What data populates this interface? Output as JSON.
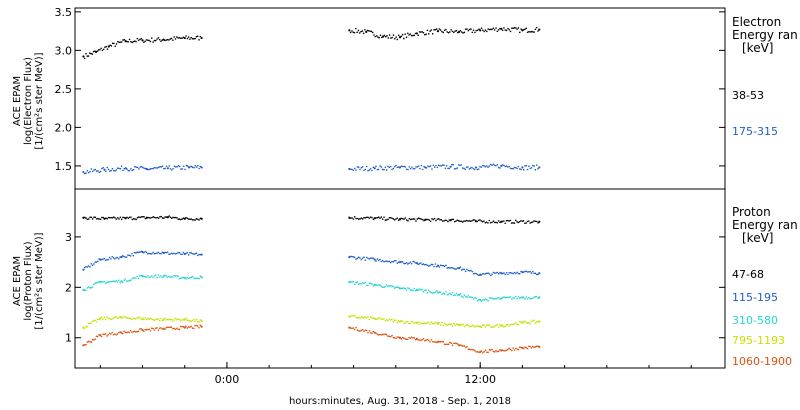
{
  "xaxis": {
    "label": "hours:minutes, Aug. 31, 2018 - Sep.  1, 2018",
    "ticks": [
      {
        "x": 0,
        "label": "0:00"
      },
      {
        "x": 12,
        "label": "12:00"
      }
    ],
    "range": [
      -7.2,
      23.6
    ]
  },
  "panels": {
    "electron": {
      "ylabel": [
        "ACE EPAM",
        "log(Electron Flux)",
        "[1/(cm²s ster MeV)]"
      ],
      "legend_title": [
        "Electron",
        "Energy ran",
        "[keV]"
      ],
      "channels": [
        {
          "label": "38-53",
          "color": "#000000"
        },
        {
          "label": "175-315",
          "color": "#1f5fc8"
        }
      ]
    },
    "proton": {
      "ylabel": [
        "ACE EPAM",
        "log(Proton Flux)",
        "[1/(cm²s ster MeV)]"
      ],
      "legend_title": [
        "Proton",
        "Energy ran",
        "[keV]"
      ],
      "channels": [
        {
          "label": "47-68",
          "color": "#000000"
        },
        {
          "label": "115-195",
          "color": "#1f5fc8"
        },
        {
          "label": "310-580",
          "color": "#22d4d4"
        },
        {
          "label": "795-1193",
          "color": "#c8e000"
        },
        {
          "label": "1060-1900",
          "color": "#e0520f"
        }
      ]
    }
  },
  "chart_data": [
    {
      "type": "scatter",
      "title": "",
      "xlabel": "hours:minutes, Aug. 31, 2018 - Sep.  1, 2018",
      "ylabel": "log(Electron Flux)",
      "xlim": [
        -7.2,
        23.6
      ],
      "ylim": [
        1.2,
        3.55
      ],
      "yticks": [
        1.5,
        2.0,
        2.5,
        3.0,
        3.5
      ],
      "series": [
        {
          "name": "38-53",
          "color": "#000000",
          "x": [
            -6.8,
            -6.2,
            -5.6,
            -4.8,
            -4.0,
            -3.0,
            -2.0,
            -1.2,
            5.8,
            6.6,
            7.4,
            8.2,
            9.0,
            10.0,
            11.0,
            12.0,
            13.0,
            14.0,
            14.8
          ],
          "y": [
            2.92,
            2.98,
            3.05,
            3.12,
            3.13,
            3.14,
            3.16,
            3.16,
            3.26,
            3.24,
            3.18,
            3.17,
            3.22,
            3.25,
            3.24,
            3.26,
            3.28,
            3.26,
            3.27
          ]
        },
        {
          "name": "175-315",
          "color": "#1f5fc8",
          "x": [
            -6.8,
            -5.8,
            -4.8,
            -3.8,
            -2.8,
            -1.8,
            -1.2,
            5.8,
            7.0,
            8.2,
            9.4,
            10.6,
            11.8,
            13.0,
            14.0,
            14.8
          ],
          "y": [
            1.42,
            1.45,
            1.47,
            1.46,
            1.47,
            1.48,
            1.48,
            1.46,
            1.47,
            1.48,
            1.48,
            1.49,
            1.48,
            1.5,
            1.48,
            1.48
          ]
        }
      ]
    },
    {
      "type": "scatter",
      "title": "",
      "xlabel": "hours:minutes, Aug. 31, 2018 - Sep.  1, 2018",
      "ylabel": "log(Proton Flux)",
      "xlim": [
        -7.2,
        23.6
      ],
      "ylim": [
        0.4,
        3.95
      ],
      "yticks": [
        1,
        2,
        3
      ],
      "series": [
        {
          "name": "47-68",
          "color": "#000000",
          "x": [
            -6.8,
            -5.8,
            -4.8,
            -3.8,
            -2.8,
            -2.0,
            -1.2,
            5.8,
            7.0,
            8.2,
            9.4,
            10.6,
            11.8,
            13.0,
            14.8
          ],
          "y": [
            3.38,
            3.36,
            3.37,
            3.38,
            3.39,
            3.36,
            3.36,
            3.38,
            3.37,
            3.35,
            3.34,
            3.33,
            3.31,
            3.3,
            3.3
          ]
        },
        {
          "name": "115-195",
          "color": "#1f5fc8",
          "x": [
            -6.8,
            -6.0,
            -5.0,
            -4.0,
            -3.0,
            -2.0,
            -1.2,
            5.8,
            7.0,
            8.2,
            9.0,
            10.0,
            11.0,
            12.0,
            13.0,
            14.0,
            14.8
          ],
          "y": [
            2.35,
            2.55,
            2.6,
            2.7,
            2.68,
            2.66,
            2.65,
            2.6,
            2.55,
            2.5,
            2.48,
            2.43,
            2.38,
            2.25,
            2.28,
            2.3,
            2.28
          ]
        },
        {
          "name": "310-580",
          "color": "#22d4d4",
          "x": [
            -6.8,
            -6.0,
            -5.0,
            -4.0,
            -3.0,
            -2.0,
            -1.2,
            5.8,
            7.0,
            8.2,
            9.0,
            10.0,
            11.0,
            12.0,
            13.0,
            14.0,
            14.8
          ],
          "y": [
            1.95,
            2.1,
            2.12,
            2.22,
            2.22,
            2.19,
            2.2,
            2.1,
            2.05,
            1.98,
            1.95,
            1.9,
            1.85,
            1.75,
            1.78,
            1.8,
            1.8
          ]
        },
        {
          "name": "795-1193",
          "color": "#c8e000",
          "x": [
            -6.8,
            -6.0,
            -5.0,
            -4.0,
            -3.0,
            -2.0,
            -1.2,
            5.8,
            7.0,
            8.2,
            9.0,
            10.0,
            11.0,
            12.0,
            13.0,
            14.0,
            14.8
          ],
          "y": [
            1.2,
            1.38,
            1.4,
            1.38,
            1.36,
            1.36,
            1.33,
            1.42,
            1.38,
            1.32,
            1.3,
            1.28,
            1.25,
            1.22,
            1.24,
            1.3,
            1.32
          ]
        },
        {
          "name": "1060-1900",
          "color": "#e0520f",
          "x": [
            -6.8,
            -6.0,
            -5.0,
            -4.0,
            -3.0,
            -2.0,
            -1.2,
            5.8,
            7.0,
            8.2,
            9.0,
            10.0,
            11.0,
            12.0,
            13.0,
            14.0,
            14.8
          ],
          "y": [
            0.85,
            1.05,
            1.1,
            1.15,
            1.18,
            1.2,
            1.22,
            1.2,
            1.1,
            1.0,
            0.98,
            0.92,
            0.85,
            0.72,
            0.75,
            0.8,
            0.82
          ]
        }
      ]
    }
  ]
}
